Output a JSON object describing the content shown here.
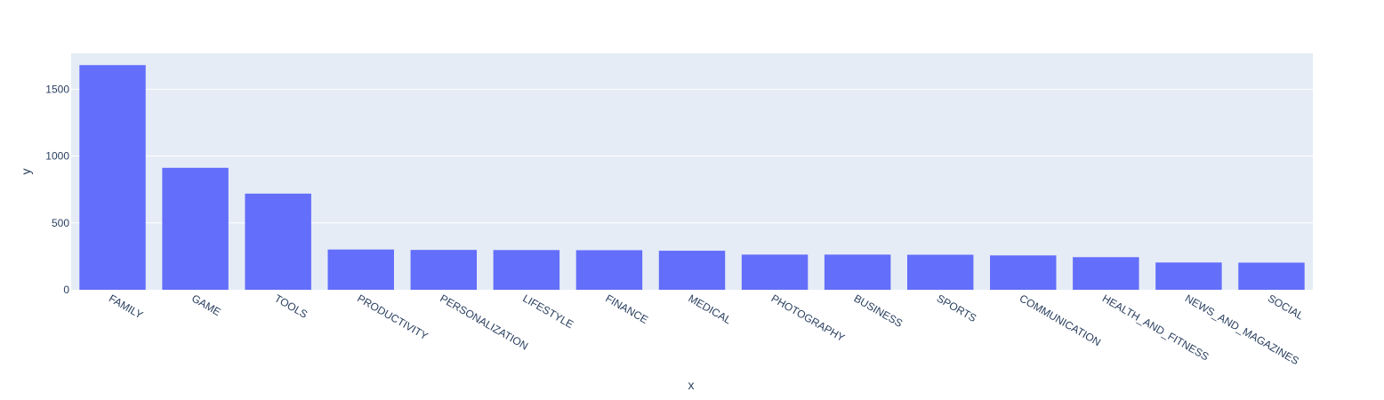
{
  "chart_data": {
    "type": "bar",
    "title": "",
    "xlabel": "x",
    "ylabel": "y",
    "categories": [
      "FAMILY",
      "GAME",
      "TOOLS",
      "PRODUCTIVITY",
      "PERSONALIZATION",
      "LIFESTYLE",
      "FINANCE",
      "MEDICAL",
      "PHOTOGRAPHY",
      "BUSINESS",
      "SPORTS",
      "COMMUNICATION",
      "HEALTH_AND_FITNESS",
      "NEWS_AND_MAGAZINES",
      "SOCIAL"
    ],
    "values": [
      1680,
      912,
      719,
      301,
      298,
      297,
      296,
      292,
      263,
      263,
      262,
      257,
      244,
      204,
      203
    ],
    "ylim": [
      0,
      1768
    ],
    "yticks": [
      0,
      500,
      1000,
      1500
    ],
    "ytick_labels": [
      "0",
      "500",
      "1000",
      "1500"
    ],
    "grid": true,
    "colors": {
      "bar": "#636efa",
      "plot_bg": "#e5ecf6",
      "grid": "#ffffff",
      "text": "#2a3f5f"
    }
  }
}
